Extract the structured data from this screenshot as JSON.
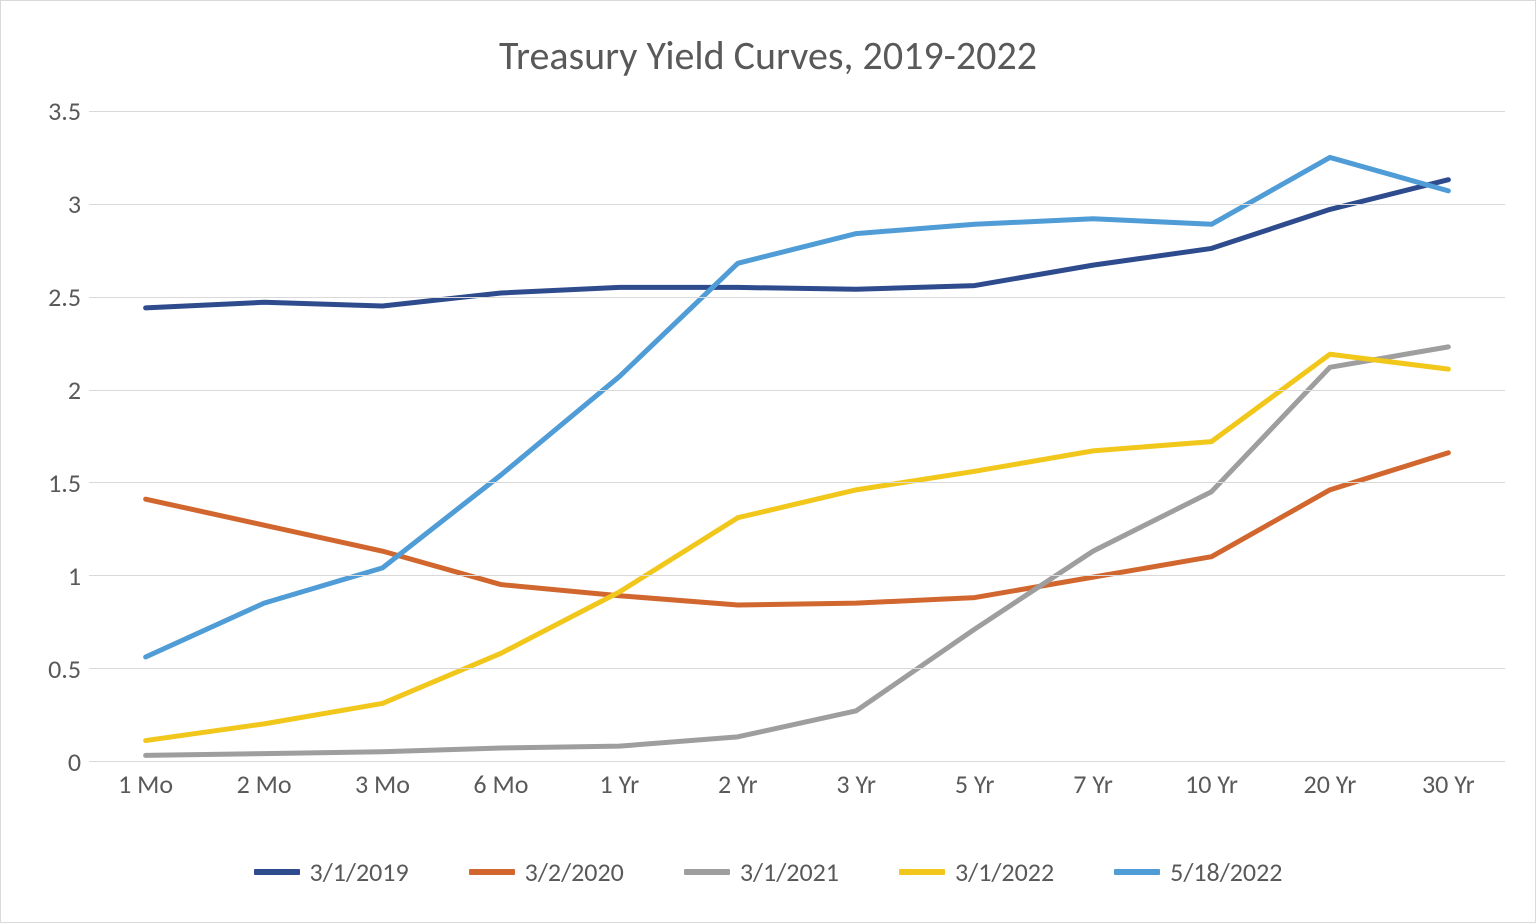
{
  "chart": {
    "type": "line",
    "title": "Treasury Yield Curves, 2019-2022",
    "title_fontsize": 40,
    "title_color": "#595959",
    "background_color": "#ffffff",
    "border_color": "#d9d9d9",
    "grid_color": "#d9d9d9",
    "axis_label_color": "#595959",
    "axis_fontsize": 26,
    "line_width": 5,
    "ylim": [
      0,
      3.5
    ],
    "ytick_step": 0.5,
    "ytick_labels": [
      "0",
      "0.5",
      "1",
      "1.5",
      "2",
      "2.5",
      "3",
      "3.5"
    ],
    "categories": [
      "1 Mo",
      "2 Mo",
      "3 Mo",
      "6 Mo",
      "1 Yr",
      "2 Yr",
      "3 Yr",
      "5 Yr",
      "7 Yr",
      "10 Yr",
      "20 Yr",
      "30 Yr"
    ],
    "series": [
      {
        "name": "3/1/2019",
        "color": "#2e4b8e",
        "values": [
          2.44,
          2.47,
          2.45,
          2.52,
          2.55,
          2.55,
          2.54,
          2.56,
          2.67,
          2.76,
          2.97,
          3.13
        ]
      },
      {
        "name": "3/2/2020",
        "color": "#d1672e",
        "values": [
          1.41,
          1.27,
          1.13,
          0.95,
          0.89,
          0.84,
          0.85,
          0.88,
          0.99,
          1.1,
          1.46,
          1.66
        ]
      },
      {
        "name": "3/1/2021",
        "color": "#9e9e9e",
        "values": [
          0.03,
          0.04,
          0.05,
          0.07,
          0.08,
          0.13,
          0.27,
          0.71,
          1.13,
          1.45,
          2.12,
          2.23
        ]
      },
      {
        "name": "3/1/2022",
        "color": "#f2c71b",
        "values": [
          0.11,
          0.2,
          0.31,
          0.58,
          0.91,
          1.31,
          1.46,
          1.56,
          1.67,
          1.72,
          2.19,
          2.11
        ]
      },
      {
        "name": "5/18/2022",
        "color": "#4f9cd6",
        "values": [
          0.56,
          0.85,
          1.04,
          1.54,
          2.07,
          2.68,
          2.84,
          2.89,
          2.92,
          2.89,
          3.25,
          3.07
        ]
      }
    ],
    "legend": {
      "position": "bottom",
      "fontsize": 26,
      "color": "#595959",
      "swatch_width": 46,
      "swatch_height": 6
    }
  }
}
